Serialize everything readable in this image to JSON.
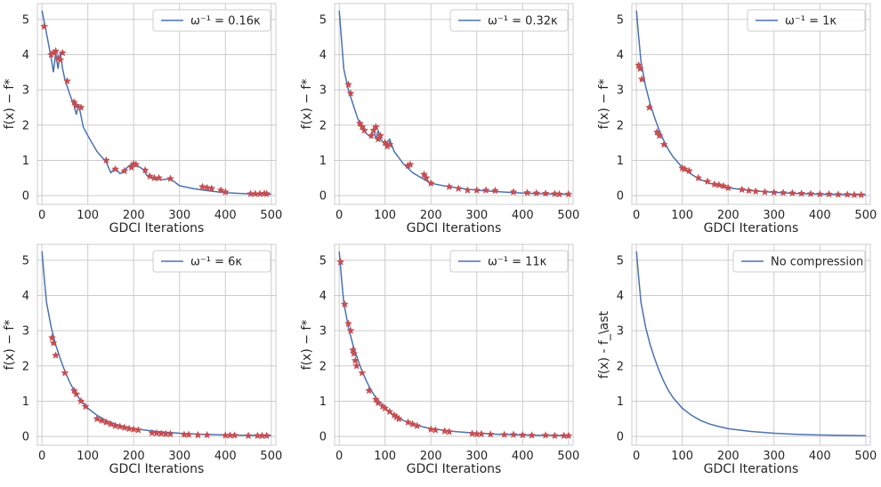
{
  "chart_data": [
    {
      "type": "line",
      "legend": {
        "label": "ω⁻¹ = 0.16κ",
        "placement": "top-right"
      },
      "xlabel": "GDCI Iterations",
      "ylabel": "f(x) − f*",
      "xlim": [
        -10,
        510
      ],
      "ylim": [
        -0.25,
        5.45
      ],
      "xticks": [
        0,
        100,
        200,
        300,
        400,
        500
      ],
      "yticks": [
        0,
        1,
        2,
        3,
        4,
        5
      ],
      "grid": true,
      "series": [
        {
          "x": [
            0,
            10,
            20,
            25,
            30,
            35,
            40,
            45,
            50,
            60,
            70,
            75,
            80,
            90,
            100,
            120,
            140,
            150,
            160,
            170,
            180,
            190,
            200,
            220,
            230,
            240,
            260,
            280,
            300,
            330,
            360,
            400,
            450,
            500
          ],
          "y": [
            5.25,
            4.6,
            3.9,
            3.5,
            4.05,
            3.6,
            4.05,
            3.6,
            3.3,
            2.9,
            2.55,
            2.3,
            2.6,
            1.95,
            1.7,
            1.25,
            0.95,
            0.65,
            0.78,
            0.62,
            0.72,
            0.85,
            0.92,
            0.75,
            0.55,
            0.5,
            0.45,
            0.48,
            0.28,
            0.2,
            0.14,
            0.08,
            0.05,
            0.04
          ]
        }
      ],
      "markers": {
        "x": [
          5,
          20,
          25,
          30,
          35,
          40,
          45,
          55,
          70,
          75,
          85,
          140,
          160,
          180,
          195,
          200,
          205,
          225,
          235,
          245,
          255,
          280,
          350,
          360,
          370,
          390,
          400,
          455,
          465,
          475,
          485,
          490
        ],
        "y": [
          4.8,
          4.0,
          4.05,
          4.1,
          3.9,
          3.85,
          4.05,
          3.25,
          2.65,
          2.55,
          2.5,
          1.0,
          0.75,
          0.7,
          0.8,
          0.9,
          0.88,
          0.72,
          0.55,
          0.5,
          0.5,
          0.48,
          0.25,
          0.22,
          0.2,
          0.15,
          0.1,
          0.05,
          0.05,
          0.05,
          0.06,
          0.05
        ]
      }
    },
    {
      "type": "line",
      "legend": {
        "label": "ω⁻¹ = 0.32κ",
        "placement": "top-right"
      },
      "xlabel": "GDCI Iterations",
      "ylabel": "f(x) − f*",
      "xlim": [
        -10,
        510
      ],
      "ylim": [
        -0.25,
        5.45
      ],
      "xticks": [
        0,
        100,
        200,
        300,
        400,
        500
      ],
      "yticks": [
        0,
        1,
        2,
        3,
        4,
        5
      ],
      "grid": true,
      "series": [
        {
          "x": [
            0,
            10,
            20,
            30,
            40,
            50,
            60,
            70,
            75,
            80,
            85,
            90,
            100,
            110,
            120,
            140,
            160,
            180,
            200,
            240,
            280,
            320,
            360,
            400,
            450,
            500
          ],
          "y": [
            5.25,
            3.6,
            3.0,
            2.6,
            2.2,
            1.9,
            1.75,
            1.65,
            1.9,
            1.6,
            1.85,
            1.6,
            1.45,
            1.6,
            1.25,
            0.9,
            0.65,
            0.5,
            0.35,
            0.25,
            0.18,
            0.13,
            0.1,
            0.07,
            0.05,
            0.04
          ]
        }
      ],
      "markers": {
        "x": [
          20,
          25,
          45,
          50,
          55,
          70,
          75,
          80,
          85,
          90,
          100,
          105,
          110,
          150,
          155,
          185,
          190,
          200,
          240,
          260,
          280,
          300,
          320,
          340,
          380,
          410,
          430,
          450,
          470,
          480,
          500
        ],
        "y": [
          3.15,
          2.9,
          2.05,
          1.95,
          1.85,
          1.7,
          1.85,
          1.95,
          1.6,
          1.7,
          1.5,
          1.4,
          1.45,
          0.85,
          0.88,
          0.6,
          0.5,
          0.35,
          0.25,
          0.2,
          0.15,
          0.15,
          0.15,
          0.14,
          0.1,
          0.08,
          0.07,
          0.06,
          0.05,
          0.04,
          0.04
        ]
      }
    },
    {
      "type": "line",
      "legend": {
        "label": "ω⁻¹ = 1κ",
        "placement": "top-right"
      },
      "xlabel": "GDCI Iterations",
      "ylabel": "f(x) − f*",
      "xlim": [
        -10,
        510
      ],
      "ylim": [
        -0.25,
        5.45
      ],
      "xticks": [
        0,
        100,
        200,
        300,
        400,
        500
      ],
      "yticks": [
        0,
        1,
        2,
        3,
        4,
        5
      ],
      "grid": true,
      "series": [
        {
          "x": [
            0,
            5,
            10,
            20,
            30,
            40,
            50,
            60,
            70,
            80,
            90,
            100,
            120,
            140,
            160,
            180,
            200,
            250,
            300,
            350,
            400,
            450,
            500
          ],
          "y": [
            5.25,
            4.5,
            3.8,
            3.1,
            2.6,
            2.2,
            1.85,
            1.55,
            1.3,
            1.1,
            0.95,
            0.8,
            0.6,
            0.45,
            0.35,
            0.28,
            0.22,
            0.14,
            0.09,
            0.06,
            0.04,
            0.03,
            0.02
          ]
        }
      ],
      "markers": {
        "x": [
          5,
          8,
          12,
          28,
          45,
          50,
          60,
          100,
          105,
          115,
          135,
          155,
          170,
          180,
          190,
          200,
          230,
          245,
          260,
          280,
          300,
          320,
          340,
          360,
          380,
          400,
          420,
          440,
          460,
          475,
          490
        ],
        "y": [
          3.7,
          3.6,
          3.3,
          2.5,
          1.8,
          1.7,
          1.45,
          0.78,
          0.75,
          0.7,
          0.5,
          0.4,
          0.32,
          0.3,
          0.27,
          0.22,
          0.17,
          0.14,
          0.12,
          0.1,
          0.09,
          0.08,
          0.07,
          0.06,
          0.05,
          0.04,
          0.04,
          0.03,
          0.03,
          0.02,
          0.02
        ]
      }
    },
    {
      "type": "line",
      "legend": {
        "label": "ω⁻¹ = 6κ",
        "placement": "top-right"
      },
      "xlabel": "GDCI Iterations",
      "ylabel": "f(x) − f*",
      "xlim": [
        -10,
        510
      ],
      "ylim": [
        -0.25,
        5.45
      ],
      "xticks": [
        0,
        100,
        200,
        300,
        400,
        500
      ],
      "yticks": [
        0,
        1,
        2,
        3,
        4,
        5
      ],
      "grid": true,
      "series": [
        {
          "x": [
            0,
            5,
            10,
            20,
            30,
            40,
            50,
            60,
            70,
            80,
            90,
            100,
            120,
            140,
            160,
            180,
            200,
            250,
            300,
            350,
            400,
            450,
            500
          ],
          "y": [
            5.25,
            4.5,
            3.8,
            3.1,
            2.6,
            2.2,
            1.85,
            1.55,
            1.3,
            1.1,
            0.95,
            0.8,
            0.6,
            0.45,
            0.35,
            0.28,
            0.22,
            0.14,
            0.09,
            0.06,
            0.04,
            0.03,
            0.02
          ]
        }
      ],
      "markers": {
        "x": [
          22,
          25,
          30,
          50,
          70,
          75,
          85,
          95,
          120,
          130,
          140,
          150,
          160,
          170,
          180,
          190,
          200,
          210,
          240,
          250,
          260,
          270,
          280,
          310,
          320,
          340,
          360,
          400,
          410,
          420,
          450,
          470,
          480,
          490
        ],
        "y": [
          2.8,
          2.65,
          2.3,
          1.8,
          1.3,
          1.2,
          1.0,
          0.85,
          0.5,
          0.45,
          0.4,
          0.35,
          0.3,
          0.28,
          0.25,
          0.22,
          0.2,
          0.18,
          0.1,
          0.09,
          0.08,
          0.07,
          0.07,
          0.05,
          0.05,
          0.04,
          0.04,
          0.03,
          0.03,
          0.03,
          0.02,
          0.02,
          0.02,
          0.02
        ]
      }
    },
    {
      "type": "line",
      "legend": {
        "label": "ω⁻¹ = 11κ",
        "placement": "top-right"
      },
      "xlabel": "GDCI Iterations",
      "ylabel": "f(x) − f*",
      "xlim": [
        -10,
        510
      ],
      "ylim": [
        -0.25,
        5.45
      ],
      "xticks": [
        0,
        100,
        200,
        300,
        400,
        500
      ],
      "yticks": [
        0,
        1,
        2,
        3,
        4,
        5
      ],
      "grid": true,
      "series": [
        {
          "x": [
            0,
            5,
            10,
            20,
            30,
            40,
            50,
            60,
            70,
            80,
            90,
            100,
            120,
            140,
            160,
            180,
            200,
            250,
            300,
            350,
            400,
            450,
            500
          ],
          "y": [
            5.25,
            4.5,
            3.8,
            3.1,
            2.6,
            2.2,
            1.85,
            1.55,
            1.3,
            1.1,
            0.95,
            0.8,
            0.6,
            0.45,
            0.35,
            0.28,
            0.22,
            0.14,
            0.09,
            0.06,
            0.04,
            0.03,
            0.02
          ]
        }
      ],
      "markers": {
        "x": [
          3,
          12,
          20,
          25,
          30,
          32,
          35,
          38,
          50,
          65,
          80,
          85,
          95,
          100,
          110,
          120,
          125,
          130,
          150,
          160,
          170,
          200,
          210,
          230,
          240,
          290,
          300,
          310,
          330,
          360,
          380,
          400,
          420,
          450,
          470,
          490,
          500
        ],
        "y": [
          4.95,
          3.75,
          3.2,
          3.0,
          2.45,
          2.35,
          2.15,
          2.0,
          1.8,
          1.3,
          1.05,
          0.95,
          0.85,
          0.8,
          0.7,
          0.6,
          0.55,
          0.5,
          0.4,
          0.35,
          0.3,
          0.2,
          0.18,
          0.15,
          0.13,
          0.08,
          0.07,
          0.07,
          0.06,
          0.05,
          0.05,
          0.04,
          0.03,
          0.03,
          0.02,
          0.02,
          0.02
        ]
      }
    },
    {
      "type": "line",
      "legend": {
        "label": "No compression",
        "placement": "top-right"
      },
      "xlabel": "GDCI Iterations",
      "ylabel": "f(x) - f_\\ast",
      "xlim": [
        -10,
        510
      ],
      "ylim": [
        -0.25,
        5.45
      ],
      "xticks": [
        0,
        100,
        200,
        300,
        400,
        500
      ],
      "yticks": [
        0,
        1,
        2,
        3,
        4,
        5
      ],
      "grid": true,
      "series": [
        {
          "x": [
            0,
            5,
            10,
            20,
            30,
            40,
            50,
            60,
            70,
            80,
            90,
            100,
            120,
            140,
            160,
            180,
            200,
            250,
            300,
            350,
            400,
            450,
            500
          ],
          "y": [
            5.25,
            4.5,
            3.8,
            3.1,
            2.6,
            2.2,
            1.85,
            1.55,
            1.3,
            1.1,
            0.95,
            0.8,
            0.6,
            0.45,
            0.35,
            0.28,
            0.22,
            0.14,
            0.09,
            0.06,
            0.04,
            0.03,
            0.02
          ]
        }
      ],
      "markers": {
        "x": [],
        "y": []
      }
    }
  ],
  "colors": {
    "line": "#4c72b0",
    "marker": "#c44e52",
    "grid": "#cccccc",
    "spine": "#cccccc"
  }
}
